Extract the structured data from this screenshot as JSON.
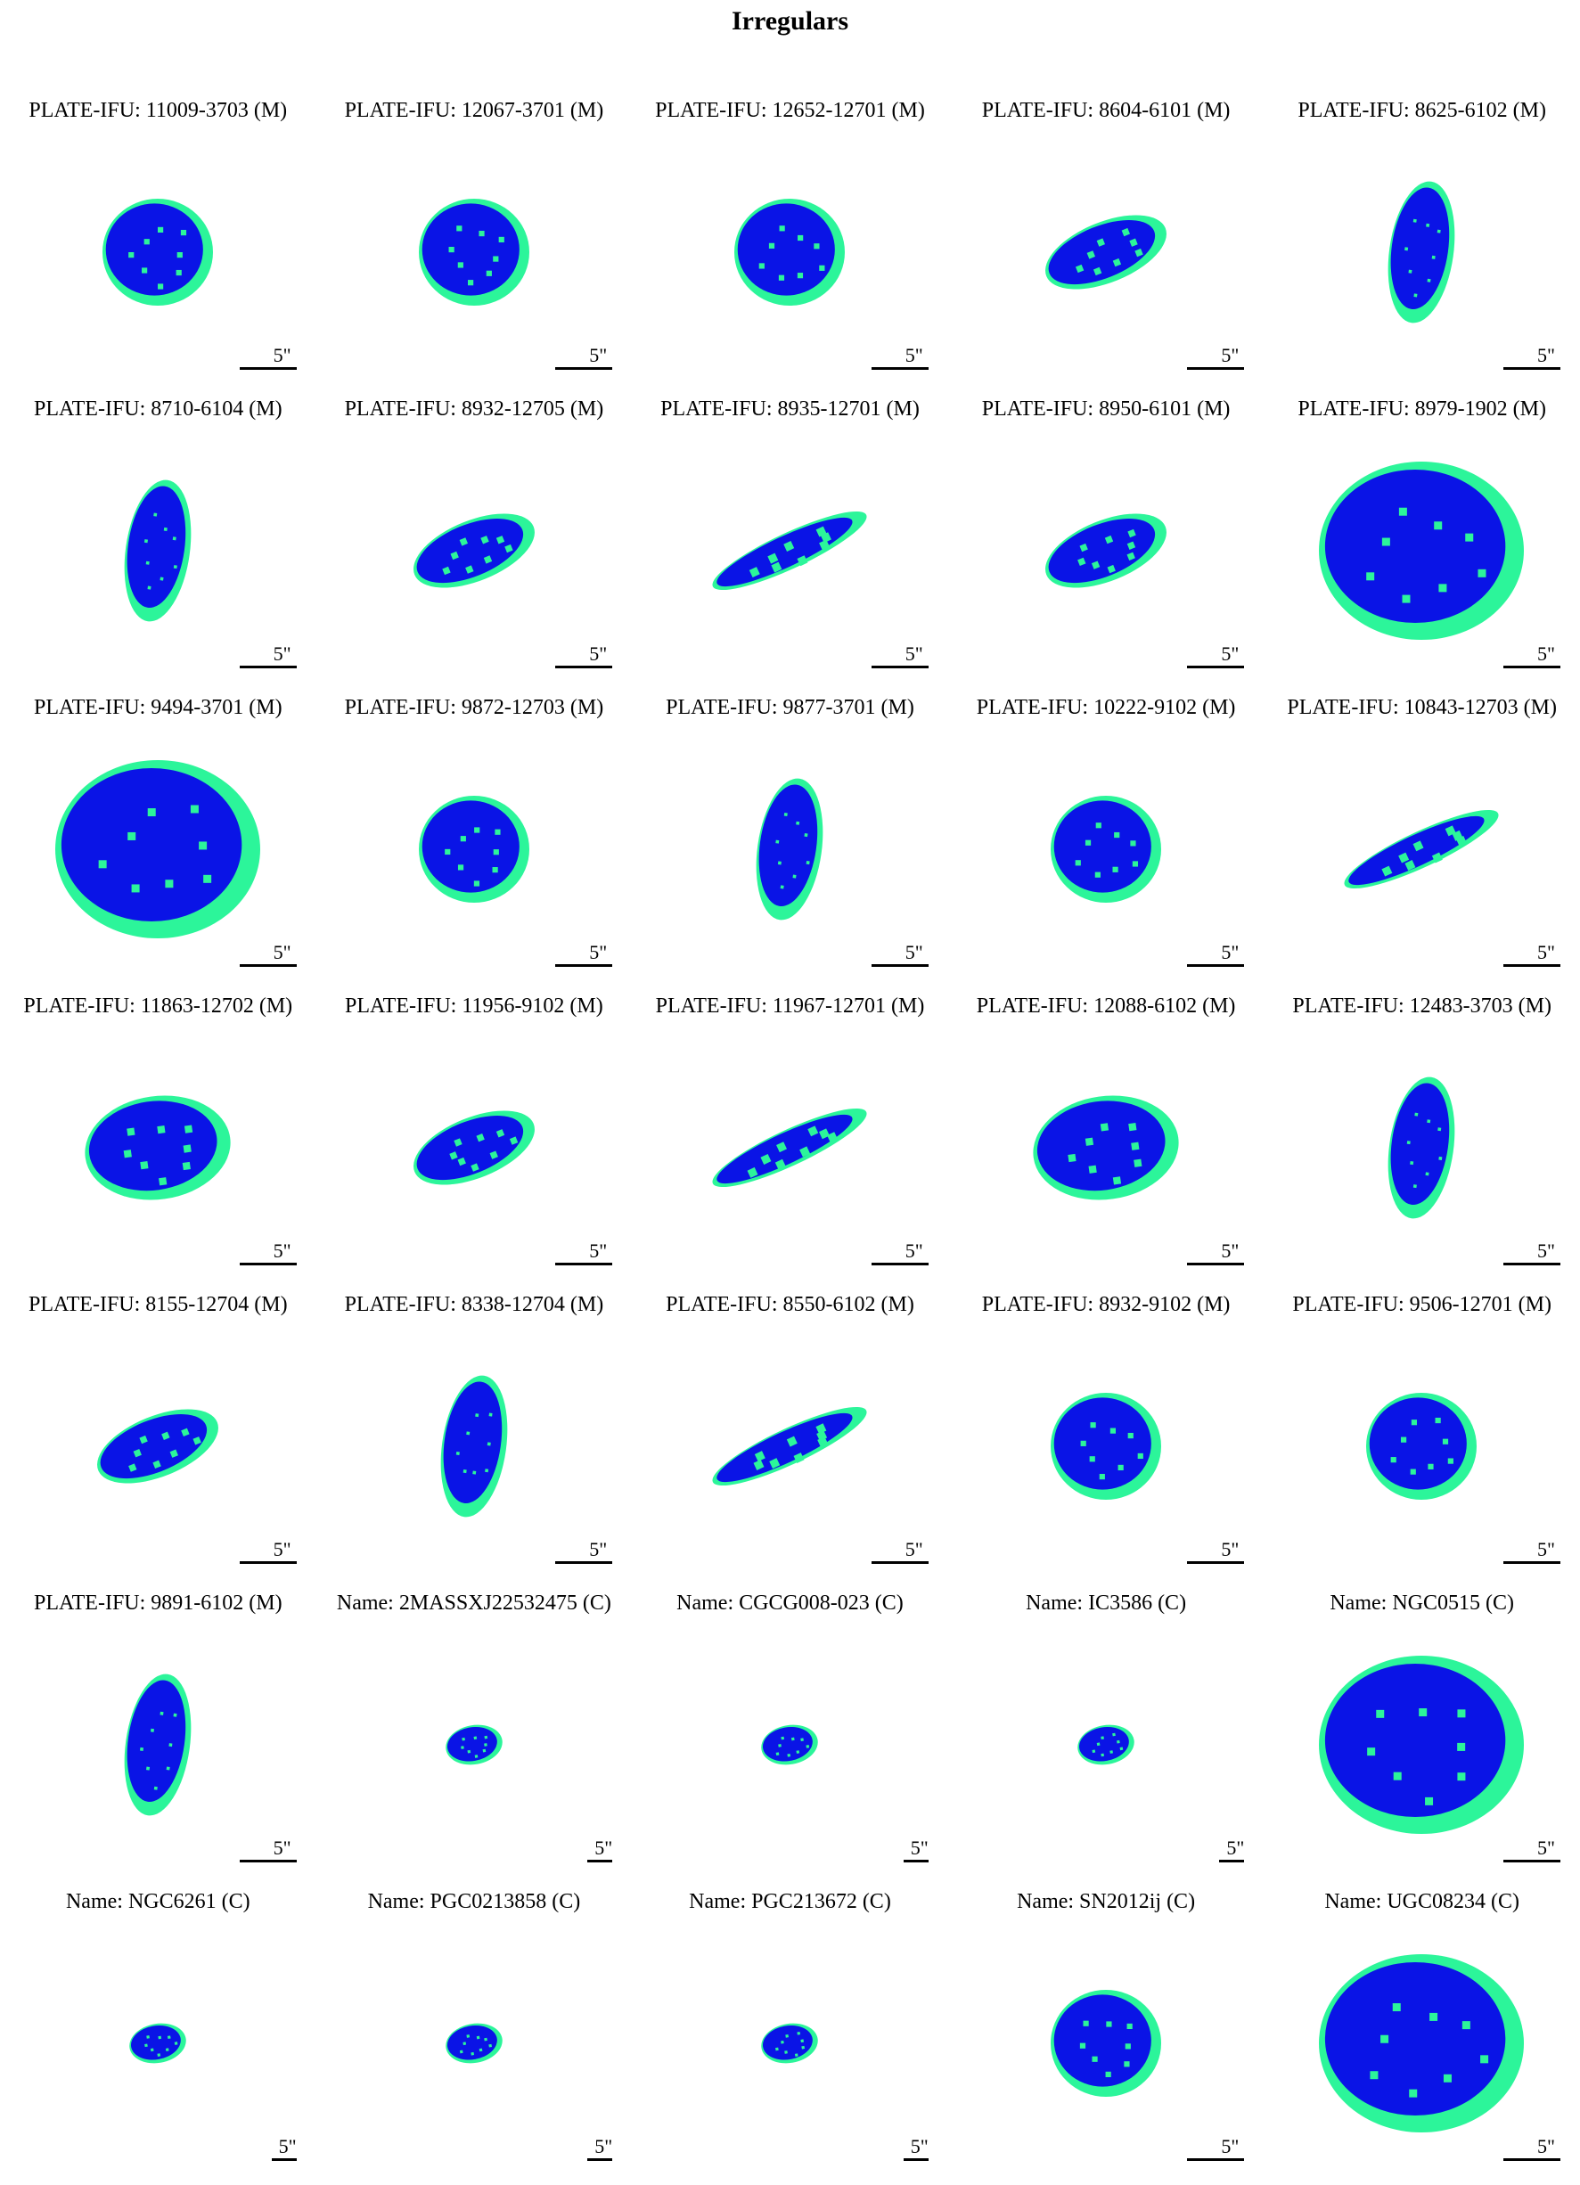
{
  "title": "Irregulars",
  "colors": {
    "disk": "#0a14e6",
    "edge": "#2cf59a"
  },
  "scale_label": "5\"",
  "panels": [
    {
      "label": "PLATE-IFU: 11009-3703 (M)",
      "shape": "round"
    },
    {
      "label": "PLATE-IFU: 12067-3701 (M)",
      "shape": "round"
    },
    {
      "label": "PLATE-IFU: 12652-12701 (M)",
      "shape": "round"
    },
    {
      "label": "PLATE-IFU: 8604-6101 (M)",
      "shape": "ellipse"
    },
    {
      "label": "PLATE-IFU: 8625-6102 (M)",
      "shape": "vertical"
    },
    {
      "label": "PLATE-IFU: 8710-6104 (M)",
      "shape": "vertical"
    },
    {
      "label": "PLATE-IFU: 8932-12705 (M)",
      "shape": "ellipse"
    },
    {
      "label": "PLATE-IFU: 8935-12701 (M)",
      "shape": "edge-on"
    },
    {
      "label": "PLATE-IFU: 8950-6101 (M)",
      "shape": "ellipse"
    },
    {
      "label": "PLATE-IFU: 8979-1902 (M)",
      "shape": "large"
    },
    {
      "label": "PLATE-IFU: 9494-3701 (M)",
      "shape": "large"
    },
    {
      "label": "PLATE-IFU: 9872-12703 (M)",
      "shape": "round"
    },
    {
      "label": "PLATE-IFU: 9877-3701 (M)",
      "shape": "vertical"
    },
    {
      "label": "PLATE-IFU: 10222-9102 (M)",
      "shape": "round"
    },
    {
      "label": "PLATE-IFU: 10843-12703 (M)",
      "shape": "edge-on"
    },
    {
      "label": "PLATE-IFU: 11863-12702 (M)",
      "shape": "irregular"
    },
    {
      "label": "PLATE-IFU: 11956-9102 (M)",
      "shape": "ellipse"
    },
    {
      "label": "PLATE-IFU: 11967-12701 (M)",
      "shape": "edge-on"
    },
    {
      "label": "PLATE-IFU: 12088-6102 (M)",
      "shape": "irregular"
    },
    {
      "label": "PLATE-IFU: 12483-3703 (M)",
      "shape": "vertical"
    },
    {
      "label": "PLATE-IFU: 8155-12704 (M)",
      "shape": "ellipse"
    },
    {
      "label": "PLATE-IFU: 8338-12704 (M)",
      "shape": "vertical"
    },
    {
      "label": "PLATE-IFU: 8550-6102 (M)",
      "shape": "edge-on"
    },
    {
      "label": "PLATE-IFU: 8932-9102 (M)",
      "shape": "round"
    },
    {
      "label": "PLATE-IFU: 9506-12701 (M)",
      "shape": "round"
    },
    {
      "label": "PLATE-IFU: 9891-6102 (M)",
      "shape": "vertical"
    },
    {
      "label": "Name: 2MASSXJ22532475 (C)",
      "shape": "tiny"
    },
    {
      "label": "Name: CGCG008-023 (C)",
      "shape": "tiny"
    },
    {
      "label": "Name: IC3586 (C)",
      "shape": "tiny"
    },
    {
      "label": "Name: NGC0515 (C)",
      "shape": "large"
    },
    {
      "label": "Name: NGC6261 (C)",
      "shape": "tiny"
    },
    {
      "label": "Name: PGC0213858 (C)",
      "shape": "tiny"
    },
    {
      "label": "Name: PGC213672 (C)",
      "shape": "tiny"
    },
    {
      "label": "Name: SN2012ij (C)",
      "shape": "round"
    },
    {
      "label": "Name: UGC08234 (C)",
      "shape": "large"
    }
  ]
}
